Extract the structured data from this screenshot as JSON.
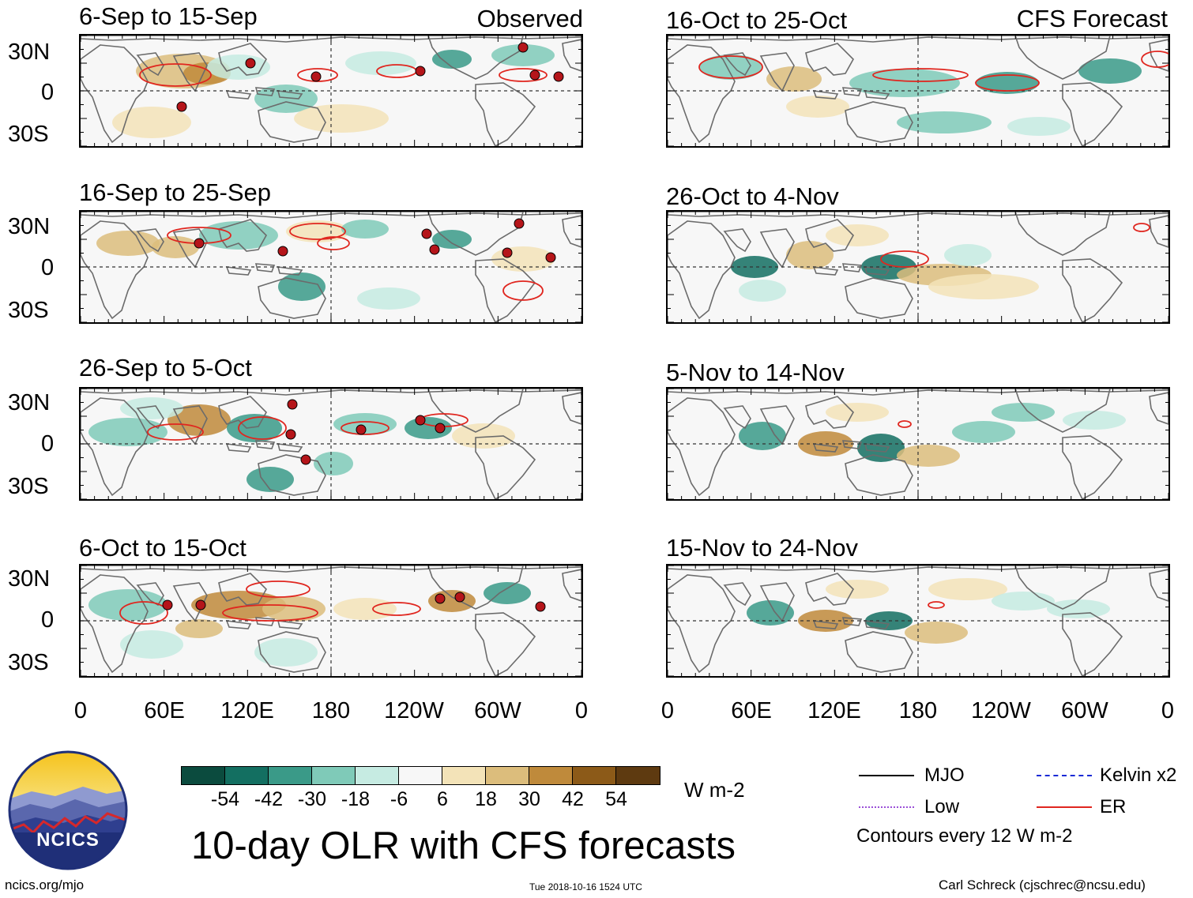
{
  "observed_label": "Observed",
  "forecast_label": "CFS Forecast",
  "panels_left": [
    {
      "title": "6-Sep to 15-Sep"
    },
    {
      "title": "16-Sep to 25-Sep"
    },
    {
      "title": "26-Sep to 5-Oct"
    },
    {
      "title": "6-Oct to 15-Oct"
    }
  ],
  "panels_right": [
    {
      "title": "16-Oct to 25-Oct"
    },
    {
      "title": "26-Oct to 4-Nov"
    },
    {
      "title": "5-Nov to 14-Nov"
    },
    {
      "title": "15-Nov to 24-Nov"
    }
  ],
  "lat_labels": [
    "30N",
    "0",
    "30S"
  ],
  "lon_labels": [
    "0",
    "60E",
    "120E",
    "180",
    "120W",
    "60W",
    "0"
  ],
  "colorbar": {
    "labels": [
      "-54",
      "-42",
      "-30",
      "-18",
      "-6",
      "6",
      "18",
      "30",
      "42",
      "54"
    ],
    "colors": [
      "#0b4b3e",
      "#136f61",
      "#3a9a88",
      "#7fcab8",
      "#c6ebe2",
      "#f7f7f7",
      "#f3e3b8",
      "#dcbd7c",
      "#bf8a3b",
      "#8c5a18",
      "#5e3a10"
    ],
    "unit": "W m-2"
  },
  "main_title": "10-day OLR with CFS forecasts",
  "legend": {
    "items": [
      {
        "label": "MJO",
        "color": "#000000"
      },
      {
        "label": "Kelvin x2",
        "color": "#1a2bd6"
      },
      {
        "label": "Low",
        "color": "#9b4fd8"
      },
      {
        "label": "ER",
        "color": "#e0261f"
      }
    ],
    "note": "Contours every 12 W m-2"
  },
  "logo_text": "NCICS",
  "footer": {
    "url": "ncics.org/mjo",
    "timestamp": "Tue 2018-10-16 1524 UTC",
    "credit": "Carl Schreck (cjschrec@ncsu.edu)"
  }
}
